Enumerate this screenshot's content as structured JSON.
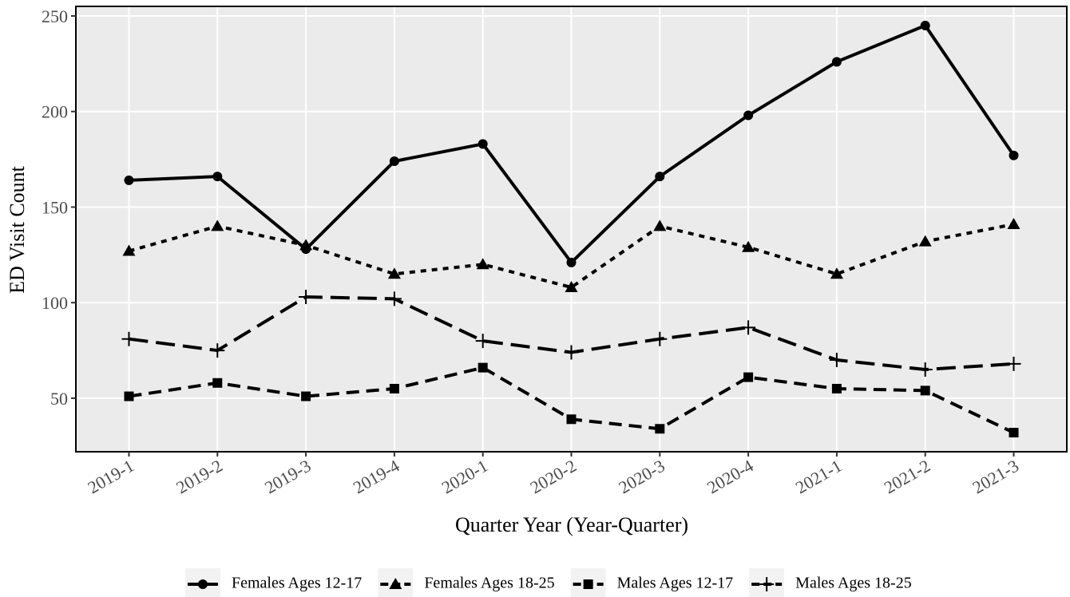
{
  "chart_data": {
    "type": "line",
    "x_label": "Quarter Year (Year-Quarter)",
    "y_label": "ED Visit Count",
    "categories": [
      "2019-1",
      "2019-2",
      "2019-3",
      "2019-4",
      "2020-1",
      "2020-2",
      "2020-3",
      "2020-4",
      "2021-1",
      "2021-2",
      "2021-3"
    ],
    "series": [
      {
        "name": "Females Ages 12-17",
        "color": "#000000",
        "dash": "solid",
        "marker": "circle",
        "values": [
          164,
          166,
          128,
          174,
          183,
          121,
          166,
          198,
          226,
          245,
          177
        ]
      },
      {
        "name": "Females Ages 18-25",
        "color": "#000000",
        "dash": "dotted",
        "marker": "triangle",
        "values": [
          127,
          140,
          130,
          115,
          120,
          108,
          140,
          129,
          115,
          132,
          141
        ]
      },
      {
        "name": "Males Ages 12-17",
        "color": "#000000",
        "dash": "dashed",
        "marker": "square",
        "values": [
          51,
          58,
          51,
          55,
          66,
          39,
          34,
          61,
          55,
          54,
          32
        ]
      },
      {
        "name": "Males Ages 18-25",
        "color": "#000000",
        "dash": "longdash",
        "marker": "plus",
        "values": [
          81,
          75,
          103,
          102,
          80,
          74,
          81,
          87,
          70,
          65,
          68
        ]
      }
    ],
    "ylim": [
      22,
      255
    ],
    "yticks": [
      50,
      100,
      150,
      200,
      250
    ],
    "grid": true,
    "legend": "bottom"
  }
}
